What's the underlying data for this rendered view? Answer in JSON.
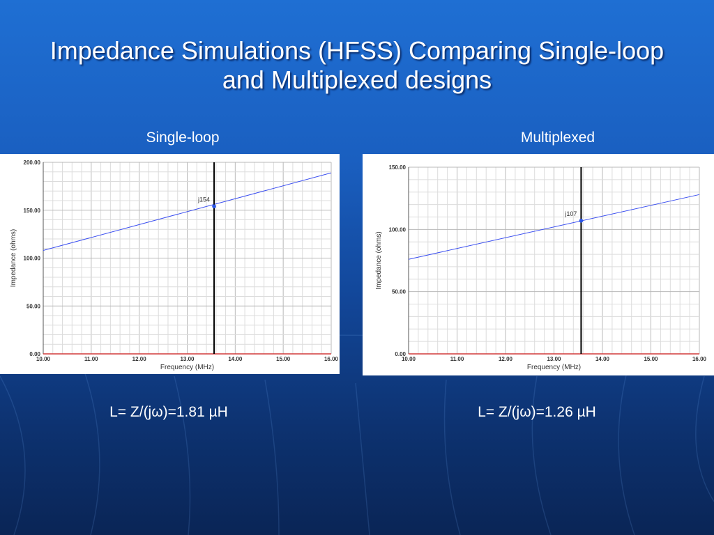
{
  "slide": {
    "title": "Impedance Simulations (HFSS) Comparing Single-loop and Multiplexed designs",
    "left_label": "Single-loop",
    "right_label": "Multiplexed",
    "left_formula": "L= Z/(jω)=1.81 µH",
    "right_formula": "L= Z/(jω)=1.26 µH"
  },
  "chart_data": [
    {
      "type": "line",
      "xlabel": "Frequency (MHz)",
      "ylabel": "Impedance (ohms)",
      "xlim": [
        10,
        16
      ],
      "ylim": [
        0,
        200
      ],
      "x_ticks": [
        "10.00",
        "11.00",
        "12.00",
        "13.00",
        "14.00",
        "15.00",
        "16.00"
      ],
      "y_ticks": [
        "0.00",
        "50.00",
        "100.00",
        "150.00",
        "200.00"
      ],
      "grid": true,
      "series": [
        {
          "x": [
            10,
            16
          ],
          "y": [
            108,
            189
          ],
          "color": "#3b4ff0"
        },
        {
          "x": [
            10,
            16
          ],
          "y": [
            0,
            0
          ],
          "color": "#d23a3a"
        }
      ],
      "marker": {
        "x": 13.56,
        "y": 154,
        "label": "j154"
      }
    },
    {
      "type": "line",
      "xlabel": "Frequency (MHz)",
      "ylabel": "Impedance (ohms)",
      "xlim": [
        10,
        16
      ],
      "ylim": [
        0,
        150
      ],
      "x_ticks": [
        "10.00",
        "11.00",
        "12.00",
        "13.00",
        "14.00",
        "15.00",
        "16.00"
      ],
      "y_ticks": [
        "0.00",
        "50.00",
        "100.00",
        "150.00"
      ],
      "grid": true,
      "series": [
        {
          "x": [
            10,
            16
          ],
          "y": [
            76,
            128
          ],
          "color": "#3b4ff0"
        },
        {
          "x": [
            10,
            16
          ],
          "y": [
            0,
            0
          ],
          "color": "#d23a3a"
        }
      ],
      "marker": {
        "x": 13.56,
        "y": 107,
        "label": "j107"
      }
    }
  ]
}
